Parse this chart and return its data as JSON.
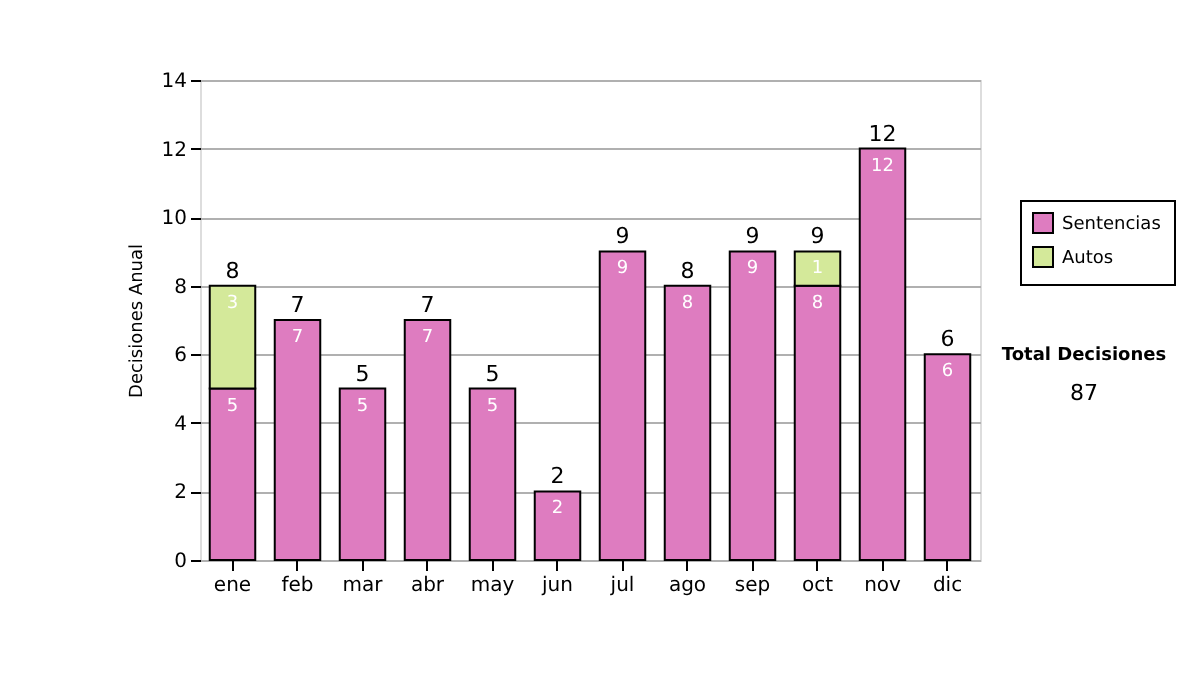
{
  "chart_data": {
    "type": "bar",
    "stacked": true,
    "ylabel": "Decisiones Anual",
    "categories": [
      "ene",
      "feb",
      "mar",
      "abr",
      "may",
      "jun",
      "jul",
      "ago",
      "sep",
      "oct",
      "nov",
      "dic"
    ],
    "series": [
      {
        "name": "Sentencias",
        "color": "#de7cc0",
        "values": [
          5,
          7,
          5,
          7,
          5,
          2,
          9,
          8,
          9,
          8,
          12,
          6
        ]
      },
      {
        "name": "Autos",
        "color": "#d4e99a",
        "values": [
          3,
          null,
          null,
          null,
          null,
          null,
          null,
          null,
          null,
          1,
          null,
          null
        ]
      }
    ],
    "totals": [
      "8",
      "7",
      "5",
      "7",
      "5",
      "2",
      "9",
      "8",
      "9",
      "9",
      "12",
      "6"
    ],
    "data_labels": true,
    "ylim": [
      0,
      14
    ],
    "yticks": [
      0,
      2,
      4,
      6,
      8,
      10,
      12,
      14
    ],
    "grid": "y",
    "legend": "right",
    "annotations": [
      "Total Decisiones",
      "87"
    ]
  }
}
